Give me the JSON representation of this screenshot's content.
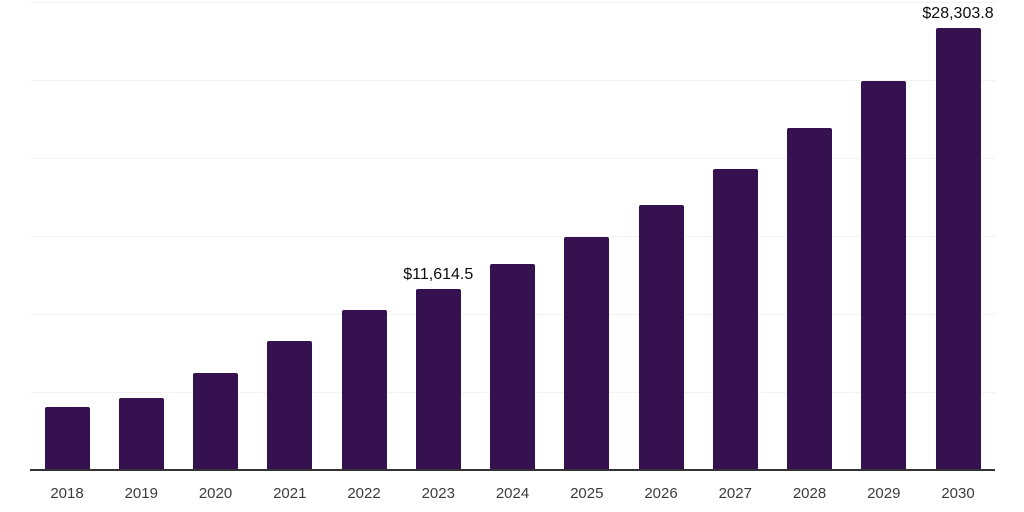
{
  "chart_data": {
    "type": "bar",
    "title": "",
    "xlabel": "",
    "ylabel": "",
    "categories": [
      "2018",
      "2019",
      "2020",
      "2021",
      "2022",
      "2023",
      "2024",
      "2025",
      "2026",
      "2027",
      "2028",
      "2029",
      "2030"
    ],
    "values": [
      4040,
      4615,
      6220,
      8270,
      10260,
      11614.5,
      13200,
      14940,
      17000,
      19300,
      21930,
      24940,
      28303.8
    ],
    "data_labels": [
      {
        "category": "2023",
        "text": "$11,614.5"
      },
      {
        "category": "2030",
        "text": "$28,303.8"
      }
    ],
    "ylim": [
      0,
      30000
    ],
    "gridline_step": 5000,
    "grid": "horizontal-only",
    "legend_position": "none",
    "y_tick_labels_visible": false,
    "colors": {
      "bar": "#351150",
      "gridline": "#f2f2f2",
      "axis_line": "#333333",
      "tick_label": "#3c3c3c",
      "data_label": "#0d0d0d",
      "background": "#ffffff"
    }
  }
}
